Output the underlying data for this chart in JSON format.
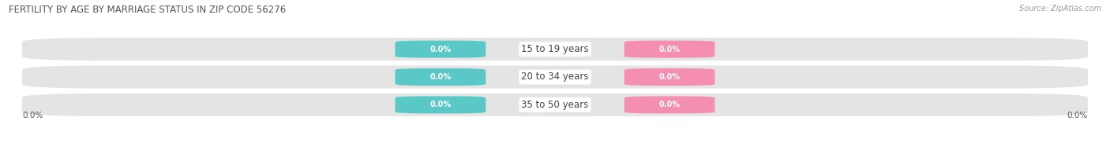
{
  "title": "FERTILITY BY AGE BY MARRIAGE STATUS IN ZIP CODE 56276",
  "source": "Source: ZipAtlas.com",
  "categories": [
    "15 to 19 years",
    "20 to 34 years",
    "35 to 50 years"
  ],
  "married_values": [
    0.0,
    0.0,
    0.0
  ],
  "unmarried_values": [
    0.0,
    0.0,
    0.0
  ],
  "married_color": "#5bc8c8",
  "unmarried_color": "#f48fb1",
  "row_bg_color": "#e4e4e4",
  "category_text_color": "#444444",
  "title_color": "#555555",
  "bar_height": 0.62,
  "figsize": [
    14.06,
    1.96
  ],
  "dpi": 100,
  "title_fontsize": 8.5,
  "label_fontsize": 7.0,
  "category_fontsize": 8.5,
  "source_fontsize": 7,
  "legend_fontsize": 8,
  "axis_label_left": "0.0%",
  "axis_label_right": "0.0%"
}
